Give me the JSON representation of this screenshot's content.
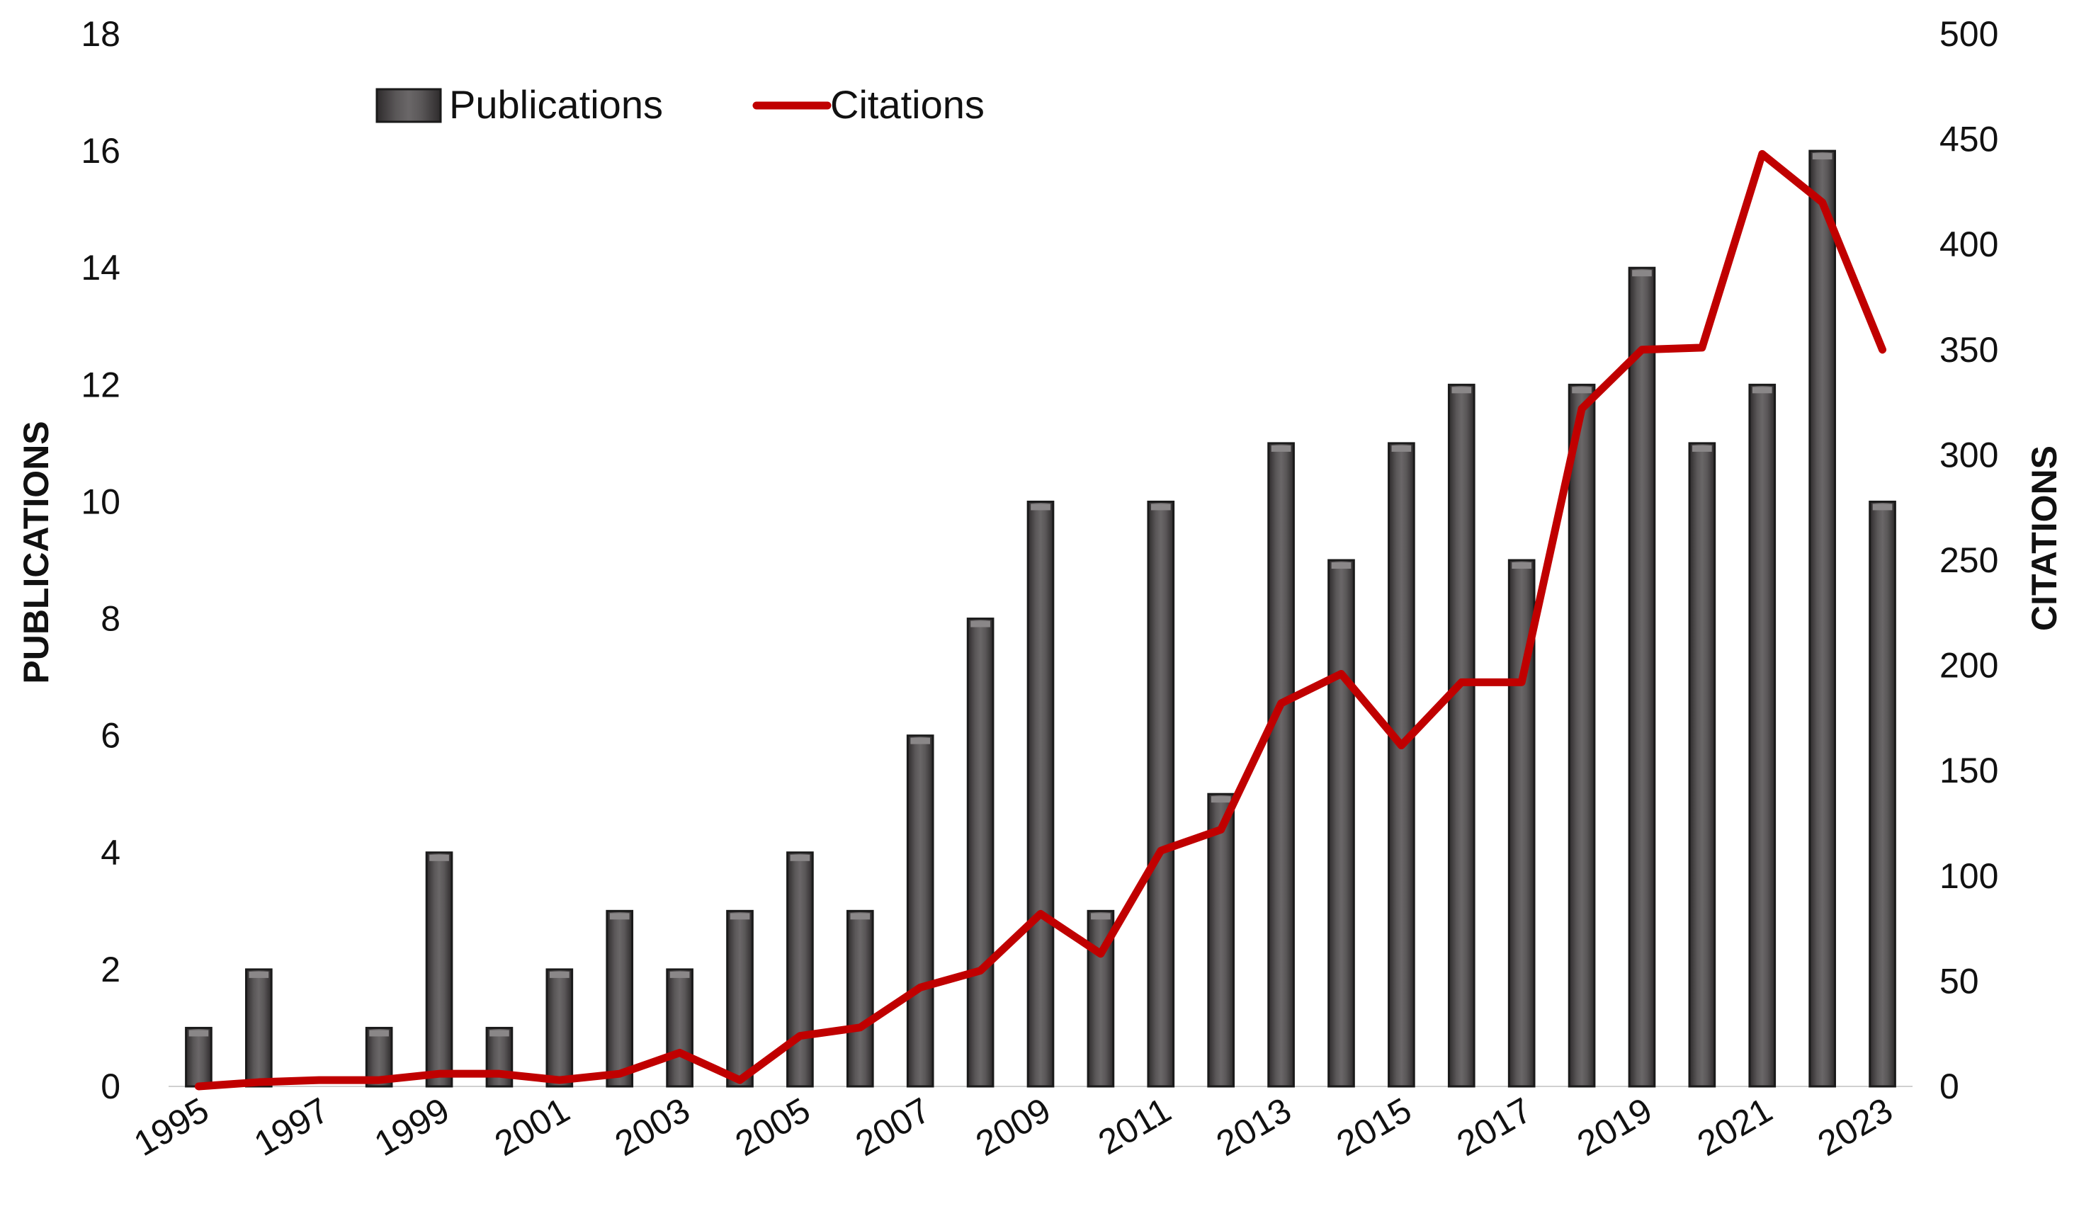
{
  "chart_data": {
    "type": "bar",
    "categories": [
      "1995",
      "1996",
      "1997",
      "1998",
      "1999",
      "2000",
      "2001",
      "2002",
      "2003",
      "2004",
      "2005",
      "2006",
      "2007",
      "2008",
      "2009",
      "2010",
      "2011",
      "2012",
      "2013",
      "2014",
      "2015",
      "2016",
      "2017",
      "2018",
      "2019",
      "2020",
      "2021",
      "2022",
      "2023"
    ],
    "x_tick_labels": [
      "1995",
      "1997",
      "1999",
      "2001",
      "2003",
      "2005",
      "2007",
      "2009",
      "2011",
      "2013",
      "2015",
      "2017",
      "2019",
      "2021",
      "2023"
    ],
    "series": [
      {
        "name": "Publications",
        "type": "bar",
        "axis": "left",
        "color": "#4a4748",
        "values": [
          1,
          2,
          0,
          1,
          4,
          1,
          2,
          3,
          2,
          3,
          4,
          3,
          6,
          8,
          10,
          3,
          10,
          5,
          11,
          9,
          11,
          12,
          9,
          12,
          14,
          11,
          12,
          16,
          10
        ]
      },
      {
        "name": "Citations",
        "type": "line",
        "axis": "right",
        "color": "#c00000",
        "values": [
          0,
          2,
          3,
          3,
          6,
          6,
          3,
          6,
          16,
          3,
          24,
          28,
          47,
          55,
          82,
          63,
          112,
          122,
          182,
          196,
          162,
          192,
          192,
          322,
          350,
          351,
          443,
          420,
          350
        ]
      }
    ],
    "ylabel": "PUBLICATIONS",
    "y2label": "CITATIONS",
    "ylim": [
      0,
      18
    ],
    "y2lim": [
      0,
      500
    ],
    "yticks": [
      0,
      2,
      4,
      6,
      8,
      10,
      12,
      14,
      16,
      18
    ],
    "y2ticks": [
      0,
      50,
      100,
      150,
      200,
      250,
      300,
      350,
      400,
      450,
      500
    ],
    "grid": false,
    "legend": {
      "placement": "top-left"
    }
  }
}
